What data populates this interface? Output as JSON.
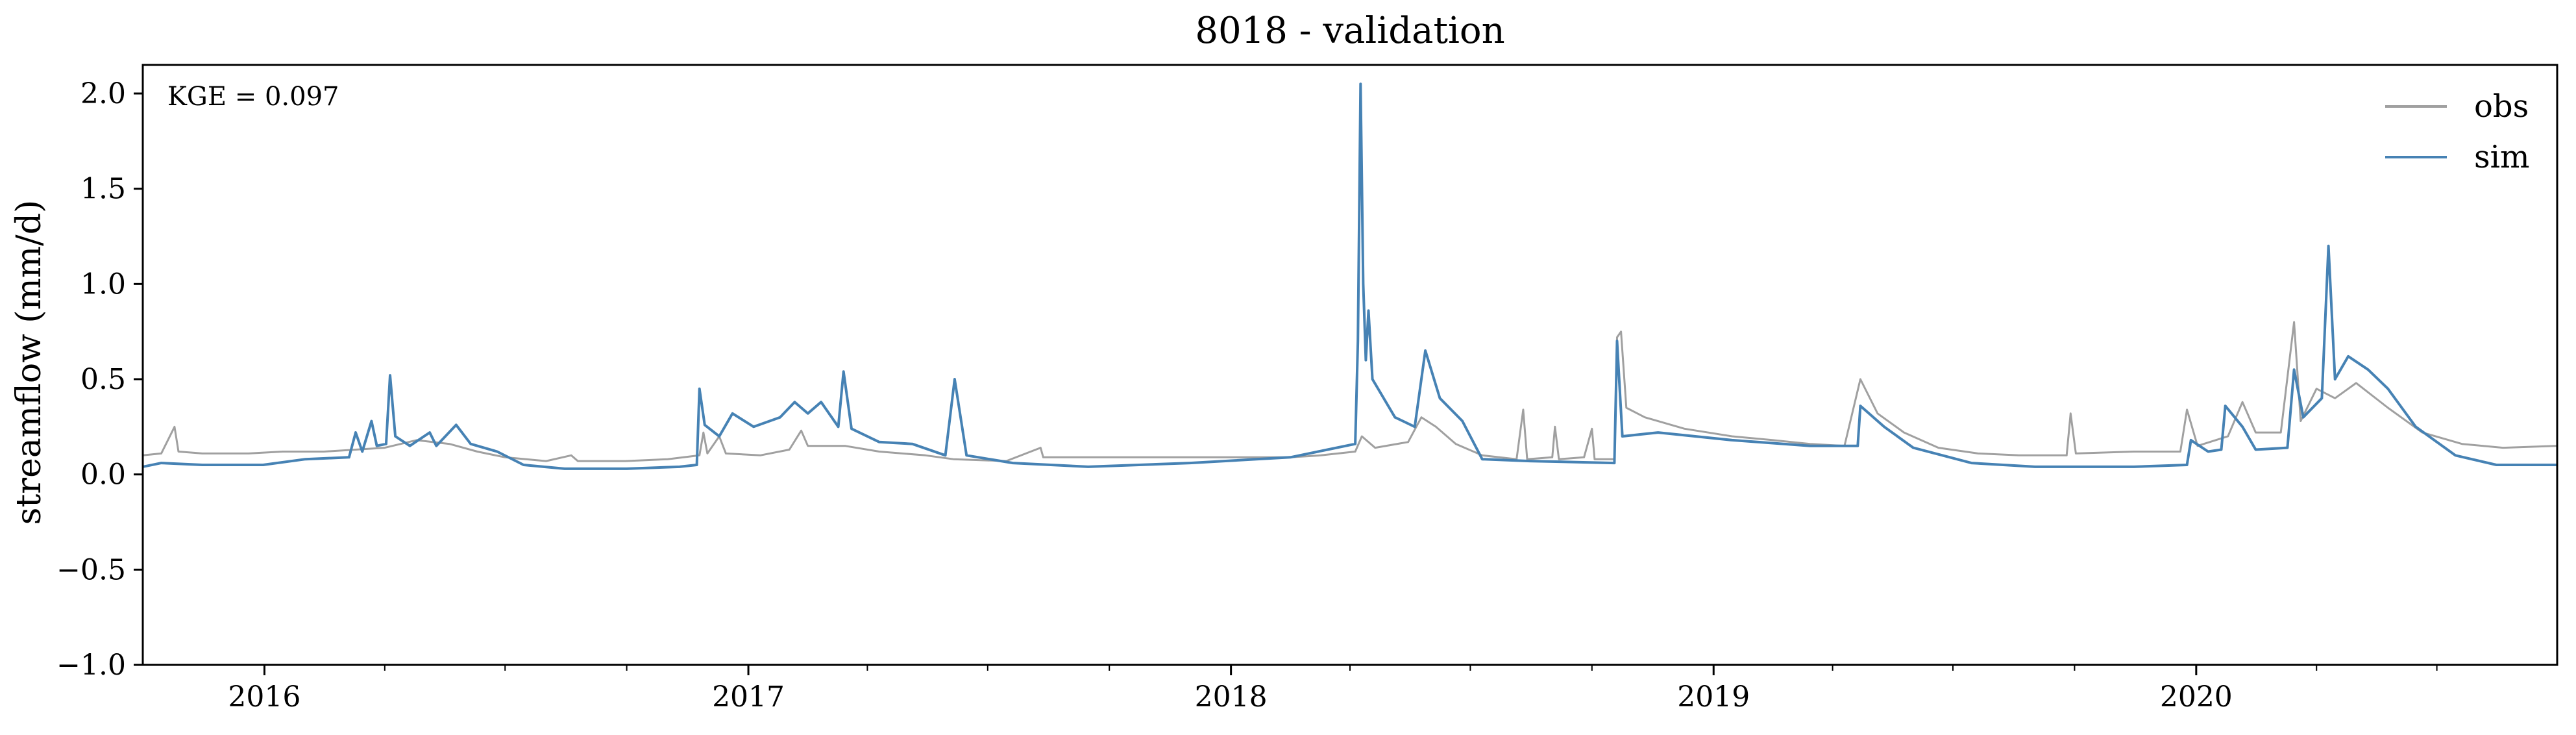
{
  "chart_data": {
    "type": "line",
    "title": "8018 - validation",
    "ylabel": "streamflow (mm/d)",
    "xlabel": "",
    "annotation": "KGE = 0.097",
    "xlim": [
      "2015-10-01",
      "2020-09-30"
    ],
    "ylim": [
      -1.0,
      2.15
    ],
    "yticks": [
      -1.0,
      -0.5,
      0.0,
      0.5,
      1.0,
      1.5,
      2.0
    ],
    "ytick_labels": [
      "−1.0",
      "−0.5",
      "0.0",
      "0.5",
      "1.0",
      "1.5",
      "2.0"
    ],
    "xticks": [
      "2016-01-01",
      "2017-01-01",
      "2018-01-01",
      "2019-01-01",
      "2020-01-01"
    ],
    "xtick_labels": [
      "2016",
      "2017",
      "2018",
      "2019",
      "2020"
    ],
    "grid": false,
    "legend": "top-right",
    "series": [
      {
        "name": "obs",
        "color": "#a0a0a0",
        "points": [
          [
            "2015-10-01",
            0.1
          ],
          [
            "2015-10-15",
            0.11
          ],
          [
            "2015-10-25",
            0.25
          ],
          [
            "2015-10-28",
            0.12
          ],
          [
            "2015-11-15",
            0.11
          ],
          [
            "2015-12-20",
            0.11
          ],
          [
            "2016-01-15",
            0.12
          ],
          [
            "2016-02-15",
            0.12
          ],
          [
            "2016-03-10",
            0.13
          ],
          [
            "2016-04-01",
            0.14
          ],
          [
            "2016-04-25",
            0.18
          ],
          [
            "2016-05-20",
            0.16
          ],
          [
            "2016-06-10",
            0.12
          ],
          [
            "2016-07-01",
            0.09
          ],
          [
            "2016-08-01",
            0.07
          ],
          [
            "2016-08-20",
            0.1
          ],
          [
            "2016-08-25",
            0.07
          ],
          [
            "2016-09-30",
            0.07
          ],
          [
            "2016-11-01",
            0.08
          ],
          [
            "2016-11-25",
            0.1
          ],
          [
            "2016-11-28",
            0.22
          ],
          [
            "2016-12-01",
            0.11
          ],
          [
            "2016-12-10",
            0.2
          ],
          [
            "2016-12-15",
            0.11
          ],
          [
            "2017-01-10",
            0.1
          ],
          [
            "2017-02-01",
            0.13
          ],
          [
            "2017-02-10",
            0.23
          ],
          [
            "2017-02-15",
            0.15
          ],
          [
            "2017-03-15",
            0.15
          ],
          [
            "2017-04-10",
            0.12
          ],
          [
            "2017-05-15",
            0.1
          ],
          [
            "2017-06-05",
            0.08
          ],
          [
            "2017-07-15",
            0.07
          ],
          [
            "2017-08-10",
            0.14
          ],
          [
            "2017-08-12",
            0.09
          ],
          [
            "2017-09-01",
            0.09
          ],
          [
            "2017-12-01",
            0.09
          ],
          [
            "2018-02-15",
            0.09
          ],
          [
            "2018-03-10",
            0.1
          ],
          [
            "2018-04-05",
            0.12
          ],
          [
            "2018-04-10",
            0.2
          ],
          [
            "2018-04-20",
            0.14
          ],
          [
            "2018-05-15",
            0.17
          ],
          [
            "2018-05-25",
            0.3
          ],
          [
            "2018-06-05",
            0.25
          ],
          [
            "2018-06-20",
            0.16
          ],
          [
            "2018-07-10",
            0.1
          ],
          [
            "2018-08-05",
            0.08
          ],
          [
            "2018-08-10",
            0.34
          ],
          [
            "2018-08-13",
            0.08
          ],
          [
            "2018-09-01",
            0.09
          ],
          [
            "2018-09-03",
            0.25
          ],
          [
            "2018-09-06",
            0.08
          ],
          [
            "2018-09-25",
            0.09
          ],
          [
            "2018-10-01",
            0.24
          ],
          [
            "2018-10-03",
            0.08
          ],
          [
            "2018-10-18",
            0.08
          ],
          [
            "2018-10-20",
            0.72
          ],
          [
            "2018-10-23",
            0.75
          ],
          [
            "2018-10-27",
            0.35
          ],
          [
            "2018-11-10",
            0.3
          ],
          [
            "2018-12-10",
            0.24
          ],
          [
            "2019-01-15",
            0.2
          ],
          [
            "2019-02-15",
            0.18
          ],
          [
            "2019-03-15",
            0.16
          ],
          [
            "2019-04-10",
            0.15
          ],
          [
            "2019-04-22",
            0.5
          ],
          [
            "2019-05-05",
            0.32
          ],
          [
            "2019-05-25",
            0.22
          ],
          [
            "2019-06-20",
            0.14
          ],
          [
            "2019-07-20",
            0.11
          ],
          [
            "2019-08-20",
            0.1
          ],
          [
            "2019-09-25",
            0.1
          ],
          [
            "2019-09-28",
            0.32
          ],
          [
            "2019-10-02",
            0.11
          ],
          [
            "2019-11-15",
            0.12
          ],
          [
            "2019-12-20",
            0.12
          ],
          [
            "2019-12-25",
            0.34
          ],
          [
            "2020-01-02",
            0.15
          ],
          [
            "2020-01-25",
            0.2
          ],
          [
            "2020-02-05",
            0.38
          ],
          [
            "2020-02-15",
            0.22
          ],
          [
            "2020-03-05",
            0.22
          ],
          [
            "2020-03-15",
            0.8
          ],
          [
            "2020-03-20",
            0.28
          ],
          [
            "2020-04-01",
            0.45
          ],
          [
            "2020-04-15",
            0.4
          ],
          [
            "2020-05-01",
            0.48
          ],
          [
            "2020-05-25",
            0.35
          ],
          [
            "2020-06-20",
            0.22
          ],
          [
            "2020-07-20",
            0.16
          ],
          [
            "2020-08-20",
            0.14
          ],
          [
            "2020-09-30",
            0.15
          ]
        ]
      },
      {
        "name": "sim",
        "color": "#4682b4",
        "points": [
          [
            "2015-10-01",
            0.04
          ],
          [
            "2015-10-15",
            0.06
          ],
          [
            "2015-11-15",
            0.05
          ],
          [
            "2015-12-31",
            0.05
          ],
          [
            "2016-02-01",
            0.08
          ],
          [
            "2016-03-05",
            0.09
          ],
          [
            "2016-03-10",
            0.22
          ],
          [
            "2016-03-15",
            0.12
          ],
          [
            "2016-03-22",
            0.28
          ],
          [
            "2016-03-26",
            0.15
          ],
          [
            "2016-04-02",
            0.16
          ],
          [
            "2016-04-05",
            0.52
          ],
          [
            "2016-04-09",
            0.2
          ],
          [
            "2016-04-20",
            0.15
          ],
          [
            "2016-05-05",
            0.22
          ],
          [
            "2016-05-10",
            0.15
          ],
          [
            "2016-05-25",
            0.26
          ],
          [
            "2016-06-05",
            0.16
          ],
          [
            "2016-06-25",
            0.12
          ],
          [
            "2016-07-15",
            0.05
          ],
          [
            "2016-08-15",
            0.03
          ],
          [
            "2016-10-01",
            0.03
          ],
          [
            "2016-11-10",
            0.04
          ],
          [
            "2016-11-23",
            0.05
          ],
          [
            "2016-11-25",
            0.45
          ],
          [
            "2016-11-29",
            0.26
          ],
          [
            "2016-12-10",
            0.2
          ],
          [
            "2016-12-20",
            0.32
          ],
          [
            "2017-01-05",
            0.25
          ],
          [
            "2017-01-25",
            0.3
          ],
          [
            "2017-02-05",
            0.38
          ],
          [
            "2017-02-15",
            0.32
          ],
          [
            "2017-02-25",
            0.38
          ],
          [
            "2017-03-10",
            0.25
          ],
          [
            "2017-03-14",
            0.54
          ],
          [
            "2017-03-20",
            0.24
          ],
          [
            "2017-04-10",
            0.17
          ],
          [
            "2017-05-05",
            0.16
          ],
          [
            "2017-05-30",
            0.1
          ],
          [
            "2017-06-06",
            0.5
          ],
          [
            "2017-06-15",
            0.1
          ],
          [
            "2017-07-20",
            0.06
          ],
          [
            "2017-09-15",
            0.04
          ],
          [
            "2017-12-01",
            0.06
          ],
          [
            "2018-02-15",
            0.09
          ],
          [
            "2018-03-15",
            0.13
          ],
          [
            "2018-04-05",
            0.16
          ],
          [
            "2018-04-07",
            0.7
          ],
          [
            "2018-04-09",
            2.05
          ],
          [
            "2018-04-11",
            1.0
          ],
          [
            "2018-04-13",
            0.6
          ],
          [
            "2018-04-15",
            0.86
          ],
          [
            "2018-04-18",
            0.5
          ],
          [
            "2018-05-05",
            0.3
          ],
          [
            "2018-05-20",
            0.25
          ],
          [
            "2018-05-28",
            0.65
          ],
          [
            "2018-06-08",
            0.4
          ],
          [
            "2018-06-25",
            0.28
          ],
          [
            "2018-07-10",
            0.08
          ],
          [
            "2018-08-15",
            0.07
          ],
          [
            "2018-10-18",
            0.06
          ],
          [
            "2018-10-20",
            0.7
          ],
          [
            "2018-10-24",
            0.2
          ],
          [
            "2018-11-20",
            0.22
          ],
          [
            "2019-01-15",
            0.18
          ],
          [
            "2019-03-15",
            0.15
          ],
          [
            "2019-04-20",
            0.15
          ],
          [
            "2019-04-22",
            0.36
          ],
          [
            "2019-05-10",
            0.25
          ],
          [
            "2019-06-01",
            0.14
          ],
          [
            "2019-07-15",
            0.06
          ],
          [
            "2019-09-01",
            0.04
          ],
          [
            "2019-11-15",
            0.04
          ],
          [
            "2019-12-25",
            0.05
          ],
          [
            "2019-12-28",
            0.18
          ],
          [
            "2020-01-10",
            0.12
          ],
          [
            "2020-01-20",
            0.13
          ],
          [
            "2020-01-23",
            0.36
          ],
          [
            "2020-02-05",
            0.25
          ],
          [
            "2020-02-15",
            0.13
          ],
          [
            "2020-03-10",
            0.14
          ],
          [
            "2020-03-15",
            0.55
          ],
          [
            "2020-03-22",
            0.3
          ],
          [
            "2020-04-05",
            0.4
          ],
          [
            "2020-04-10",
            1.2
          ],
          [
            "2020-04-15",
            0.5
          ],
          [
            "2020-04-25",
            0.62
          ],
          [
            "2020-05-10",
            0.55
          ],
          [
            "2020-05-25",
            0.45
          ],
          [
            "2020-06-15",
            0.25
          ],
          [
            "2020-07-15",
            0.1
          ],
          [
            "2020-08-15",
            0.05
          ],
          [
            "2020-09-30",
            0.05
          ]
        ]
      }
    ]
  }
}
